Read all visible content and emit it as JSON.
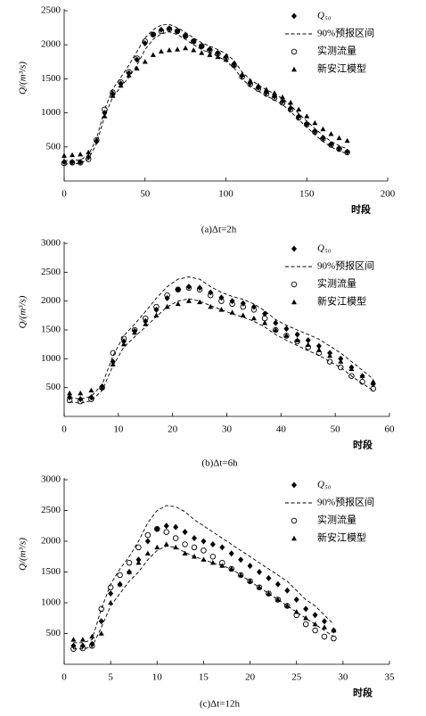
{
  "chart_data": [
    {
      "type": "scatter-band",
      "caption": "(a)Δt=2h",
      "y_label": "Q/(m³/s)",
      "x_label": "时段",
      "xlim": [
        0,
        200
      ],
      "xticks": [
        0,
        50,
        100,
        150,
        200
      ],
      "ylim": [
        0,
        2500
      ],
      "yticks": [
        500,
        1000,
        1500,
        2000,
        2500
      ],
      "x": [
        0,
        5,
        10,
        15,
        20,
        25,
        30,
        35,
        40,
        45,
        50,
        55,
        60,
        65,
        70,
        75,
        80,
        85,
        90,
        95,
        100,
        105,
        110,
        115,
        120,
        125,
        130,
        135,
        140,
        145,
        150,
        155,
        160,
        165,
        170,
        175
      ],
      "series": [
        {
          "name": "Q₅₀",
          "marker": "diamond",
          "color": "#000",
          "values": [
            280,
            280,
            280,
            350,
            580,
            1000,
            1280,
            1430,
            1580,
            1780,
            2020,
            2150,
            2220,
            2240,
            2200,
            2130,
            2050,
            1980,
            1930,
            1880,
            1820,
            1720,
            1550,
            1440,
            1370,
            1300,
            1240,
            1170,
            1070,
            950,
            840,
            730,
            630,
            540,
            480,
            430
          ]
        },
        {
          "name": "90%预报区间",
          "marker": "dashed",
          "color": "#000",
          "upper": [
            300,
            300,
            310,
            380,
            620,
            1050,
            1350,
            1520,
            1700,
            1900,
            2100,
            2220,
            2290,
            2300,
            2250,
            2180,
            2100,
            2030,
            1980,
            1930,
            1870,
            1770,
            1600,
            1490,
            1410,
            1340,
            1280,
            1210,
            1110,
            990,
            880,
            770,
            670,
            580,
            520,
            470
          ],
          "lower": [
            250,
            250,
            260,
            320,
            550,
            950,
            1230,
            1380,
            1520,
            1700,
            1930,
            2080,
            2160,
            2190,
            2150,
            2080,
            2000,
            1930,
            1880,
            1830,
            1760,
            1660,
            1500,
            1390,
            1320,
            1250,
            1190,
            1120,
            1020,
            900,
            790,
            680,
            580,
            500,
            440,
            400
          ]
        },
        {
          "name": "实测流量",
          "marker": "circle",
          "color": "#000",
          "values": [
            260,
            270,
            270,
            320,
            600,
            1050,
            1300,
            1450,
            1600,
            1800,
            2050,
            2150,
            2200,
            2230,
            2200,
            2130,
            2050,
            1980,
            1920,
            1870,
            1800,
            1700,
            1530,
            1420,
            1350,
            1280,
            1220,
            1150,
            1050,
            930,
            830,
            720,
            620,
            530,
            470,
            420
          ]
        },
        {
          "name": "新安江模型",
          "marker": "triangle",
          "color": "#000",
          "values": [
            370,
            380,
            390,
            420,
            600,
            950,
            1250,
            1400,
            1550,
            1650,
            1750,
            1850,
            1900,
            1920,
            1930,
            1950,
            1920,
            1880,
            1850,
            1820,
            1780,
            1700,
            1560,
            1470,
            1400,
            1340,
            1290,
            1230,
            1150,
            1050,
            950,
            850,
            760,
            690,
            630,
            590
          ]
        }
      ]
    },
    {
      "type": "scatter-band",
      "caption": "(b)Δt=6h",
      "y_label": "Q/(m³/s)",
      "x_label": "时段",
      "xlim": [
        0,
        60
      ],
      "xticks": [
        0,
        10,
        20,
        30,
        40,
        50,
        60
      ],
      "ylim": [
        0,
        3000
      ],
      "yticks": [
        500,
        1000,
        1500,
        2000,
        2500,
        3000
      ],
      "x": [
        1,
        3,
        5,
        7,
        9,
        11,
        13,
        15,
        17,
        19,
        21,
        23,
        25,
        27,
        29,
        31,
        33,
        35,
        37,
        39,
        41,
        43,
        45,
        47,
        49,
        51,
        53,
        55,
        57
      ],
      "series": [
        {
          "name": "Q₅₀",
          "marker": "diamond",
          "color": "#000",
          "values": [
            330,
            300,
            330,
            520,
            950,
            1300,
            1480,
            1650,
            1850,
            2050,
            2200,
            2250,
            2230,
            2150,
            2060,
            2000,
            1960,
            1900,
            1780,
            1620,
            1520,
            1420,
            1320,
            1220,
            1100,
            1000,
            850,
            700,
            560
          ]
        },
        {
          "name": "90%预报区间",
          "marker": "dashed",
          "color": "#000",
          "upper": [
            330,
            300,
            350,
            550,
            1050,
            1400,
            1600,
            1820,
            2050,
            2250,
            2380,
            2420,
            2380,
            2250,
            2150,
            2080,
            2030,
            1950,
            1830,
            1680,
            1580,
            1500,
            1420,
            1340,
            1220,
            1100,
            950,
            800,
            650
          ],
          "lower": [
            250,
            230,
            270,
            450,
            880,
            1200,
            1380,
            1550,
            1730,
            1900,
            2000,
            2040,
            2000,
            1920,
            1850,
            1780,
            1720,
            1650,
            1550,
            1420,
            1320,
            1230,
            1140,
            1060,
            950,
            850,
            700,
            570,
            450
          ]
        },
        {
          "name": "实测流量",
          "marker": "circle",
          "color": "#000",
          "values": [
            280,
            260,
            300,
            500,
            1100,
            1350,
            1500,
            1700,
            1900,
            2100,
            2200,
            2230,
            2200,
            2100,
            2000,
            1950,
            1900,
            1850,
            1700,
            1500,
            1400,
            1300,
            1200,
            1100,
            950,
            850,
            700,
            600,
            480
          ]
        },
        {
          "name": "新安江模型",
          "marker": "triangle",
          "color": "#000",
          "values": [
            400,
            400,
            450,
            500,
            900,
            1250,
            1450,
            1600,
            1750,
            1900,
            1950,
            2000,
            1980,
            1900,
            1850,
            1800,
            1750,
            1700,
            1620,
            1500,
            1400,
            1320,
            1240,
            1150,
            1050,
            950,
            820,
            700,
            600
          ]
        }
      ]
    },
    {
      "type": "scatter-band",
      "caption": "(c)Δt=12h",
      "y_label": "Q/(m³/s)",
      "x_label": "时段",
      "xlim": [
        0,
        35
      ],
      "xticks": [
        0,
        5,
        10,
        15,
        20,
        25,
        30,
        35
      ],
      "ylim": [
        0,
        3000
      ],
      "yticks": [
        500,
        1000,
        1500,
        2000,
        2500,
        3000
      ],
      "x": [
        1,
        2,
        3,
        4,
        5,
        6,
        7,
        8,
        9,
        10,
        11,
        12,
        13,
        14,
        15,
        16,
        17,
        18,
        19,
        20,
        21,
        22,
        23,
        24,
        25,
        26,
        27,
        28,
        29
      ],
      "series": [
        {
          "name": "Q₅₀",
          "marker": "diamond",
          "color": "#000",
          "values": [
            300,
            300,
            330,
            700,
            1150,
            1300,
            1500,
            1700,
            2000,
            2200,
            2250,
            2230,
            2150,
            2050,
            2000,
            1950,
            1900,
            1800,
            1700,
            1600,
            1500,
            1400,
            1300,
            1200,
            1050,
            900,
            800,
            700,
            550
          ]
        },
        {
          "name": "90%预报区间",
          "marker": "dashed",
          "color": "#000",
          "upper": [
            350,
            350,
            400,
            900,
            1300,
            1550,
            1750,
            2000,
            2300,
            2500,
            2580,
            2560,
            2480,
            2350,
            2250,
            2150,
            2050,
            1950,
            1850,
            1750,
            1650,
            1550,
            1450,
            1350,
            1200,
            1050,
            950,
            800,
            650
          ],
          "lower": [
            250,
            250,
            280,
            600,
            950,
            1150,
            1350,
            1500,
            1700,
            1850,
            1920,
            1900,
            1820,
            1750,
            1700,
            1650,
            1600,
            1550,
            1450,
            1350,
            1250,
            1150,
            1050,
            950,
            850,
            750,
            650,
            550,
            450
          ]
        },
        {
          "name": "实测流量",
          "marker": "circle",
          "color": "#000",
          "values": [
            250,
            260,
            300,
            900,
            1250,
            1450,
            1650,
            1900,
            2100,
            2200,
            2150,
            2050,
            1950,
            1900,
            1850,
            1750,
            1650,
            1550,
            1450,
            1350,
            1250,
            1150,
            1050,
            950,
            800,
            650,
            550,
            450,
            420
          ]
        },
        {
          "name": "新安江模型",
          "marker": "triangle",
          "color": "#000",
          "values": [
            400,
            400,
            450,
            500,
            1000,
            1300,
            1500,
            1650,
            1800,
            1900,
            1950,
            1900,
            1800,
            1750,
            1700,
            1650,
            1600,
            1550,
            1450,
            1350,
            1250,
            1150,
            1050,
            950,
            850,
            750,
            650,
            600,
            550
          ]
        }
      ]
    }
  ]
}
